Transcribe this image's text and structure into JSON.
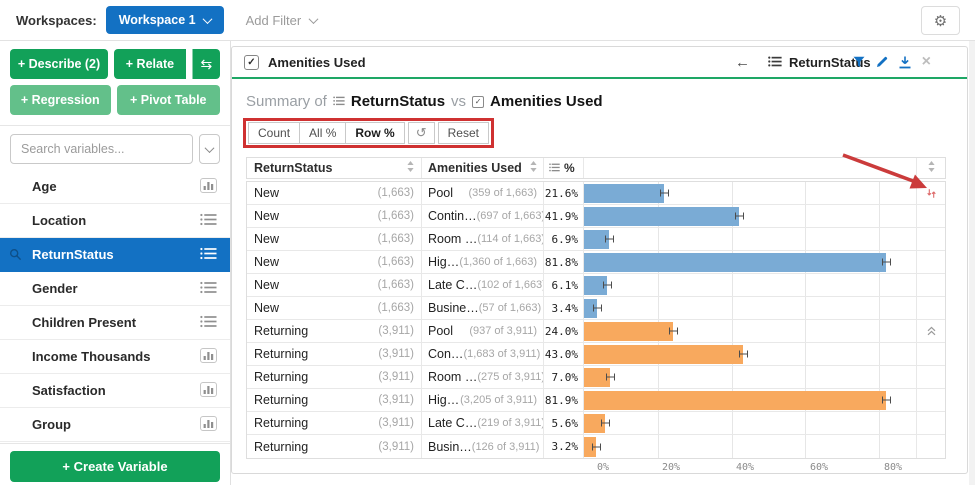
{
  "colors": {
    "accent_blue": "#1371c3",
    "green_dark": "#12a159",
    "green_light": "#63c08a",
    "green_header_line": "#1ea765",
    "bar_blue": "#7aabd5",
    "bar_orange": "#f8a95e",
    "annotation_red": "#cf3131"
  },
  "glyphs": {
    "swap": "⇆",
    "refresh": "↺",
    "back": "←",
    "close": "×",
    "check": "✓",
    "gear": "⚙"
  },
  "top_bar": {
    "workspaces_label": "Workspaces:",
    "workspace_button": "Workspace 1",
    "add_filter_label": "Add Filter"
  },
  "sidebar": {
    "describe_button": "+ Describe (2)",
    "relate_button": "+ Relate",
    "regression_button": "+ Regression",
    "pivot_button": "+ Pivot Table",
    "search_placeholder": "Search variables...",
    "variables": [
      {
        "label": "Age",
        "icon": "histogram",
        "selected": false
      },
      {
        "label": "Location",
        "icon": "list",
        "selected": false
      },
      {
        "label": "ReturnStatus",
        "icon": "list",
        "selected": true
      },
      {
        "label": "Gender",
        "icon": "list",
        "selected": false
      },
      {
        "label": "Children Present",
        "icon": "list",
        "selected": false
      },
      {
        "label": "Income Thousands",
        "icon": "histogram",
        "selected": false
      },
      {
        "label": "Satisfaction",
        "icon": "histogram",
        "selected": false
      },
      {
        "label": "Group",
        "icon": "histogram",
        "selected": false
      }
    ],
    "create_variable_button": "+ Create Variable"
  },
  "main": {
    "header": {
      "checkbox_label": "Amenities Used",
      "secondary_label": "ReturnStatus"
    },
    "title": {
      "prefix": "Summary of",
      "var1": "ReturnStatus",
      "vs": "vs",
      "var2": "Amenities Used"
    },
    "toolbar": {
      "segments": [
        {
          "label": "Count",
          "active": false
        },
        {
          "label": "All %",
          "active": false
        },
        {
          "label": "Row %",
          "active": true
        }
      ],
      "reset_label": "Reset"
    },
    "table": {
      "headers": {
        "col1": "ReturnStatus",
        "col2": "Amenities Used",
        "col3": "%"
      },
      "rows": [
        {
          "group": "New",
          "group_count": "(1,663)",
          "amenity": "Pool",
          "amenity_count": "(359 of 1,663)",
          "pct": 21.6,
          "pct_label": "21.6%",
          "color": "blue",
          "row_icon": "sort-red"
        },
        {
          "group": "New",
          "group_count": "(1,663)",
          "amenity": "Contin…",
          "amenity_count": "(697 of 1,663)",
          "pct": 41.9,
          "pct_label": "41.9%",
          "color": "blue"
        },
        {
          "group": "New",
          "group_count": "(1,663)",
          "amenity": "Room …",
          "amenity_count": "(114 of 1,663)",
          "pct": 6.9,
          "pct_label": "6.9%",
          "color": "blue"
        },
        {
          "group": "New",
          "group_count": "(1,663)",
          "amenity": "Hig…",
          "amenity_count": "(1,360 of 1,663)",
          "pct": 81.8,
          "pct_label": "81.8%",
          "color": "blue"
        },
        {
          "group": "New",
          "group_count": "(1,663)",
          "amenity": "Late C…",
          "amenity_count": "(102 of 1,663)",
          "pct": 6.1,
          "pct_label": "6.1%",
          "color": "blue"
        },
        {
          "group": "New",
          "group_count": "(1,663)",
          "amenity": "Busine…",
          "amenity_count": "(57 of 1,663)",
          "pct": 3.4,
          "pct_label": "3.4%",
          "color": "blue"
        },
        {
          "group": "Returning",
          "group_count": "(3,911)",
          "amenity": "Pool",
          "amenity_count": "(937 of 3,911)",
          "pct": 24.0,
          "pct_label": "24.0%",
          "color": "orange",
          "row_icon": "collapse"
        },
        {
          "group": "Returning",
          "group_count": "(3,911)",
          "amenity": "Con…",
          "amenity_count": "(1,683 of 3,911)",
          "pct": 43.0,
          "pct_label": "43.0%",
          "color": "orange"
        },
        {
          "group": "Returning",
          "group_count": "(3,911)",
          "amenity": "Room …",
          "amenity_count": "(275 of 3,911)",
          "pct": 7.0,
          "pct_label": "7.0%",
          "color": "orange"
        },
        {
          "group": "Returning",
          "group_count": "(3,911)",
          "amenity": "Hig…",
          "amenity_count": "(3,205 of 3,911)",
          "pct": 81.9,
          "pct_label": "81.9%",
          "color": "orange"
        },
        {
          "group": "Returning",
          "group_count": "(3,911)",
          "amenity": "Late C…",
          "amenity_count": "(219 of 3,911)",
          "pct": 5.6,
          "pct_label": "5.6%",
          "color": "orange"
        },
        {
          "group": "Returning",
          "group_count": "(3,911)",
          "amenity": "Busin…",
          "amenity_count": "(126 of 3,911)",
          "pct": 3.2,
          "pct_label": "3.2%",
          "color": "orange"
        }
      ]
    },
    "chart_axis": {
      "tick_values": [
        0,
        20,
        40,
        60,
        80
      ],
      "tick_labels": [
        "0%",
        "20%",
        "40%",
        "60%",
        "80%"
      ],
      "axis_max": 90
    }
  }
}
